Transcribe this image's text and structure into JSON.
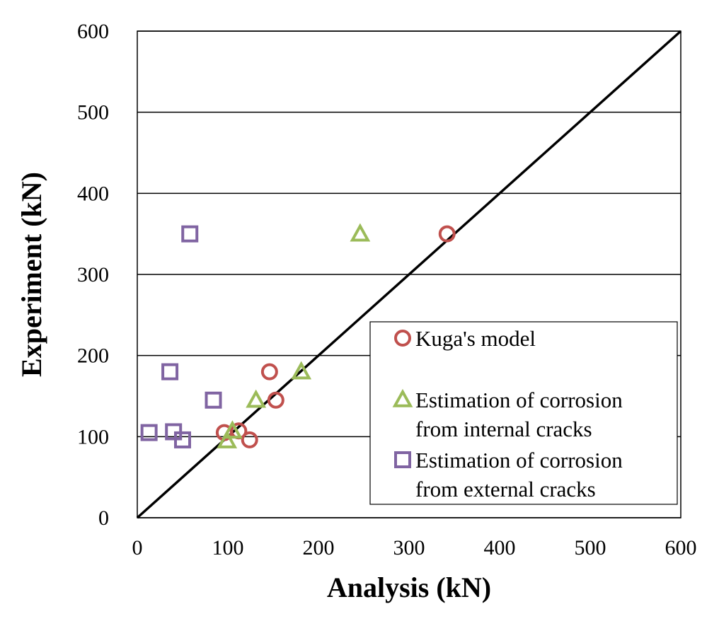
{
  "chart_data": {
    "type": "scatter",
    "xlabel": "Analysis (kN)",
    "ylabel": "Experiment (kN)",
    "xlim": [
      0,
      600
    ],
    "ylim": [
      0,
      600
    ],
    "xticks": [
      "0",
      "100",
      "200",
      "300",
      "400",
      "500",
      "600"
    ],
    "yticks": [
      "0",
      "100",
      "200",
      "300",
      "400",
      "500",
      "600"
    ],
    "grid": "horizontal",
    "reference_line": {
      "x": [
        0,
        600
      ],
      "y": [
        0,
        600
      ]
    },
    "legend_position": "lower-right",
    "series": [
      {
        "name": "Kuga's model",
        "marker": "circle",
        "color": "#c0504d",
        "points": [
          [
            342,
            350
          ],
          [
            146,
            180
          ],
          [
            153,
            145
          ],
          [
            96,
            105
          ],
          [
            112,
            107
          ],
          [
            124,
            96
          ]
        ]
      },
      {
        "name": "Estimation of corrosion from internal cracks",
        "legend_lines": [
          "Estimation of corrosion",
          "from internal cracks"
        ],
        "marker": "triangle",
        "color": "#9bbb59",
        "points": [
          [
            246,
            350
          ],
          [
            181,
            180
          ],
          [
            131,
            145
          ],
          [
            105,
            107
          ],
          [
            99,
            95
          ]
        ]
      },
      {
        "name": "Estimation of corrosion from external cracks",
        "legend_lines": [
          "Estimation of corrosion",
          "from external cracks"
        ],
        "marker": "square",
        "color": "#8064a2",
        "points": [
          [
            58,
            350
          ],
          [
            36,
            180
          ],
          [
            84,
            145
          ],
          [
            13,
            105
          ],
          [
            40,
            106
          ],
          [
            50,
            96
          ]
        ]
      }
    ]
  }
}
